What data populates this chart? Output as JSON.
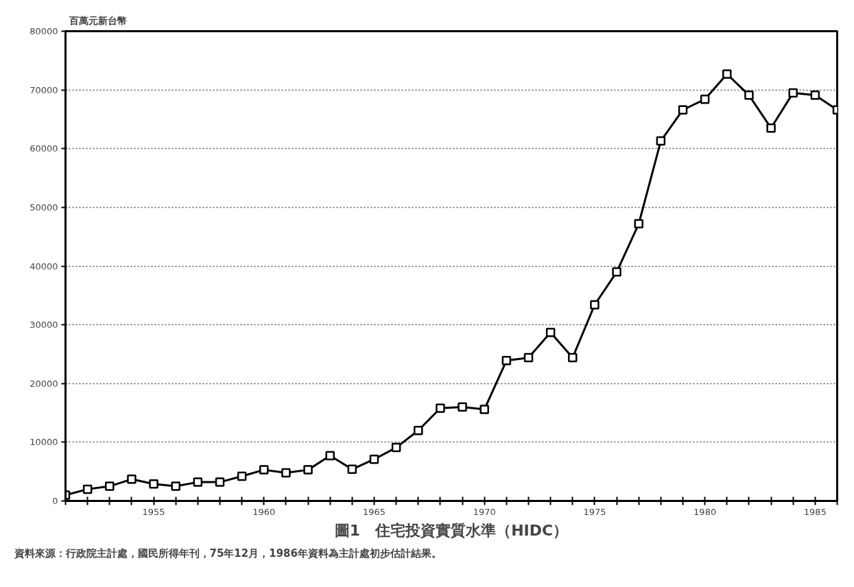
{
  "chart_data": {
    "type": "line",
    "title": "圖1　住宅投資實質水準（HIDC）",
    "ylabel": "百萬元新台幣",
    "annotations": [
      "資料來源：行政院主計處，國民所得年刊，75年12月，1986年資料為主計處初步估計結果。"
    ],
    "x": [
      1951,
      1952,
      1953,
      1954,
      1955,
      1956,
      1957,
      1958,
      1959,
      1960,
      1961,
      1962,
      1963,
      1964,
      1965,
      1966,
      1967,
      1968,
      1969,
      1970,
      1971,
      1972,
      1973,
      1974,
      1975,
      1976,
      1977,
      1978,
      1979,
      1980,
      1981,
      1982,
      1983,
      1984,
      1985,
      1986
    ],
    "series": [
      {
        "color": "#000000",
        "values": [
          1000,
          2000,
          2500,
          3700,
          2900,
          2500,
          3200,
          3200,
          4200,
          5300,
          4800,
          5300,
          7700,
          5400,
          7100,
          9100,
          12000,
          15800,
          16000,
          15600,
          23900,
          24400,
          28700,
          24400,
          33400,
          39000,
          47200,
          61300,
          66600,
          68400,
          72700,
          69100,
          63500,
          69500,
          69100,
          66600
        ]
      }
    ],
    "xlim": [
      1951,
      1986
    ],
    "xticks": [
      {
        "value": 1951,
        "label": null
      },
      {
        "value": 1952,
        "label": null
      },
      {
        "value": 1953,
        "label": null
      },
      {
        "value": 1954,
        "label": null
      },
      1955,
      {
        "value": 1956,
        "label": null
      },
      {
        "value": 1957,
        "label": null
      },
      {
        "value": 1958,
        "label": null
      },
      {
        "value": 1959,
        "label": null
      },
      1960,
      {
        "value": 1961,
        "label": null
      },
      {
        "value": 1962,
        "label": null
      },
      {
        "value": 1963,
        "label": null
      },
      {
        "value": 1964,
        "label": null
      },
      1965,
      {
        "value": 1966,
        "label": null
      },
      {
        "value": 1967,
        "label": null
      },
      {
        "value": 1968,
        "label": null
      },
      {
        "value": 1969,
        "label": null
      },
      1970,
      {
        "value": 1971,
        "label": null
      },
      {
        "value": 1972,
        "label": null
      },
      {
        "value": 1973,
        "label": null
      },
      {
        "value": 1974,
        "label": null
      },
      1975,
      {
        "value": 1976,
        "label": null
      },
      {
        "value": 1977,
        "label": null
      },
      {
        "value": 1978,
        "label": null
      },
      {
        "value": 1979,
        "label": null
      },
      1980,
      {
        "value": 1981,
        "label": null
      },
      {
        "value": 1982,
        "label": null
      },
      {
        "value": 1983,
        "label": null
      },
      {
        "value": 1984,
        "label": null
      },
      1985,
      {
        "value": 1986,
        "label": null
      }
    ],
    "ylim": [
      0,
      80000
    ],
    "yticks": [
      0,
      10000,
      20000,
      30000,
      40000,
      50000,
      60000,
      70000,
      80000
    ],
    "grid": "y",
    "marker": "square",
    "line_style": "solid"
  }
}
